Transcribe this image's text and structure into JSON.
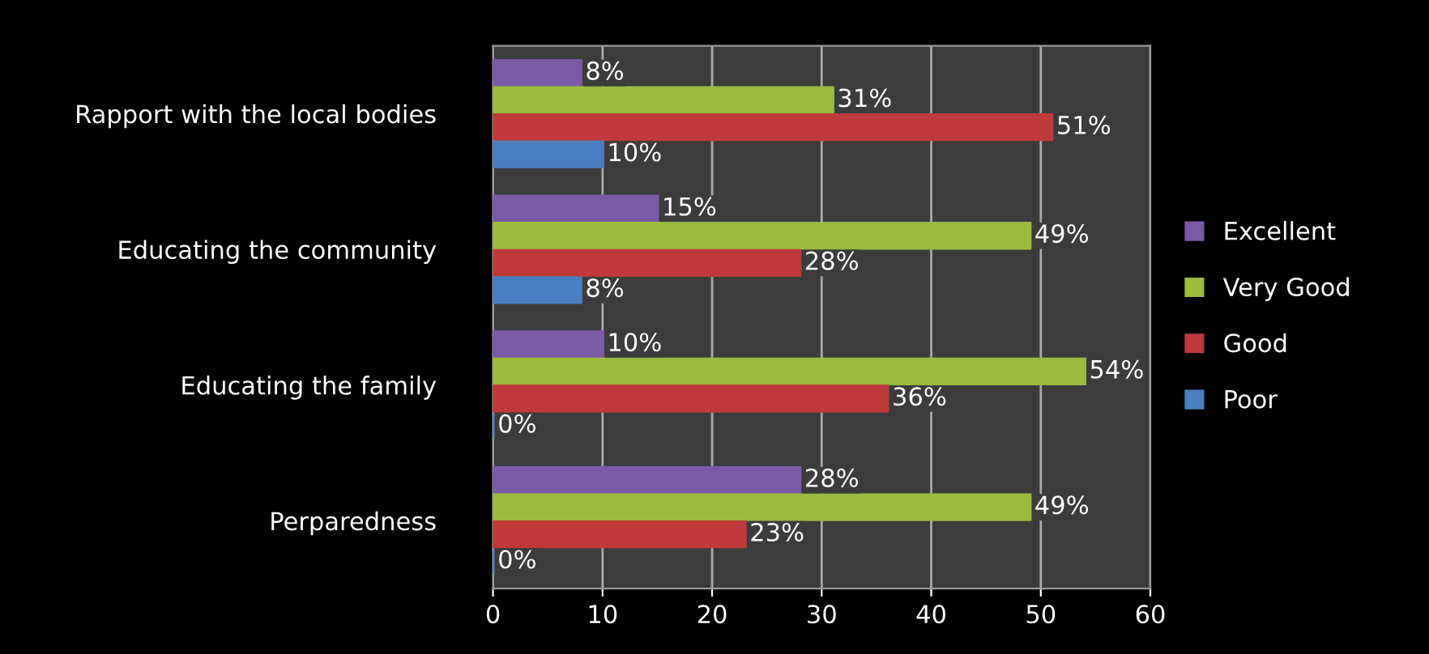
{
  "chart_data": {
    "type": "bar",
    "orientation": "horizontal",
    "categories": [
      "Rapport with the local bodies",
      "Educating the community",
      "Educating the family",
      "Perparedness"
    ],
    "series": [
      {
        "name": "Excellent",
        "color": "#7b5aa6",
        "values": [
          8,
          15,
          10,
          28
        ],
        "value_labels": [
          "8%",
          "15%",
          "10%",
          "28%"
        ]
      },
      {
        "name": "Very Good",
        "color": "#9bbb3c",
        "values": [
          31,
          49,
          54,
          49
        ],
        "value_labels": [
          "31%",
          "49%",
          "54%",
          "49%"
        ]
      },
      {
        "name": "Good",
        "color": "#c0393b",
        "values": [
          51,
          28,
          36,
          23
        ],
        "value_labels": [
          "51%",
          "28%",
          "36%",
          "23%"
        ]
      },
      {
        "name": "Poor",
        "color": "#4a7ec0",
        "values": [
          10,
          8,
          0,
          0
        ],
        "value_labels": [
          "10%",
          "8%",
          "0%",
          "0%"
        ]
      }
    ],
    "xlim": [
      0,
      60
    ],
    "xticks": [
      0,
      10,
      20,
      30,
      40,
      50,
      60
    ],
    "grid": "x",
    "legend": "right"
  }
}
